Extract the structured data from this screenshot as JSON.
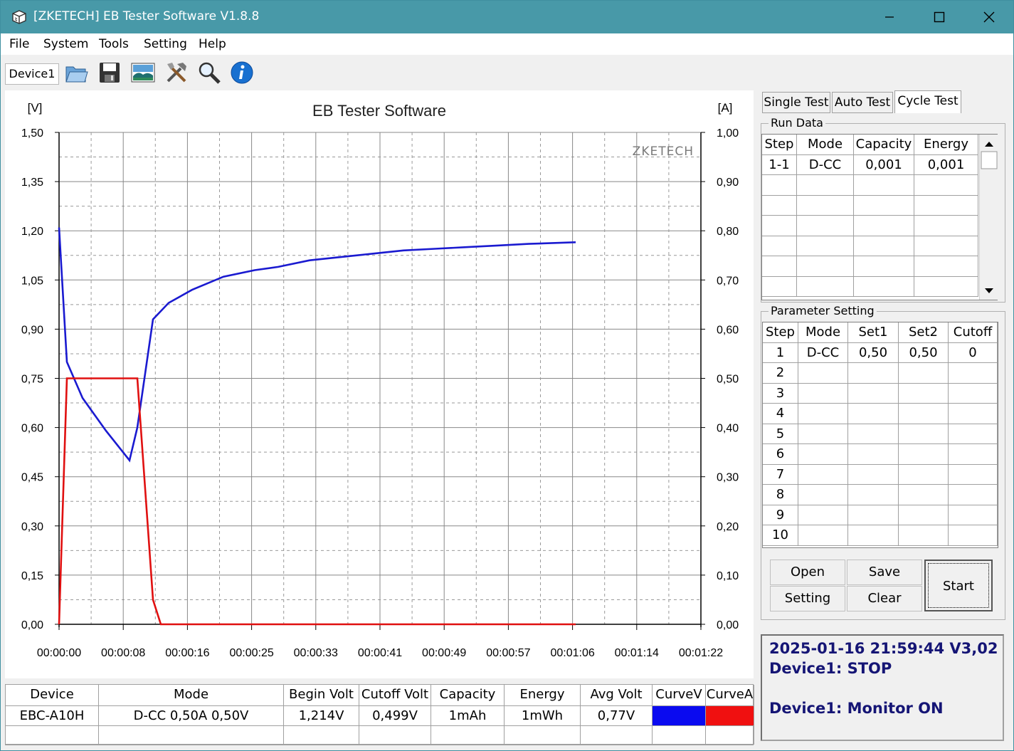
{
  "window": {
    "title": "[ZKETECH] EB Tester Software V1.8.8"
  },
  "menu": [
    "File",
    "System",
    "Tools",
    "Setting",
    "Help"
  ],
  "toolbar": {
    "device_tab": "Device1",
    "icons": [
      "open-folder-icon",
      "save-icon",
      "picture-icon",
      "tools-icon",
      "search-icon",
      "info-icon"
    ]
  },
  "chart": {
    "title": "EB Tester Software",
    "watermark": "ZKETECH",
    "left_unit": "[V]",
    "right_unit": "[A]"
  },
  "chart_data": {
    "type": "line",
    "title": "EB Tester Software",
    "ylabel": "[V]",
    "y2label": "[A]",
    "ylim": [
      0,
      1.5
    ],
    "y2lim": [
      0,
      1.0
    ],
    "y_ticks": [
      "1,50",
      "1,35",
      "1,20",
      "1,05",
      "0,90",
      "0,75",
      "0,60",
      "0,45",
      "0,30",
      "0,15",
      "0,00"
    ],
    "y2_ticks": [
      "1,00",
      "0,90",
      "0,80",
      "0,70",
      "0,60",
      "0,50",
      "0,40",
      "0,30",
      "0,20",
      "0,10",
      "0,00"
    ],
    "x_ticks": [
      "00:00:00",
      "00:00:08",
      "00:00:16",
      "00:00:25",
      "00:00:33",
      "00:00:41",
      "00:00:49",
      "00:00:57",
      "00:01:06",
      "00:01:14",
      "00:01:22"
    ],
    "xlim_seconds": [
      0,
      82
    ],
    "grid": true,
    "series": [
      {
        "name": "CurveV",
        "axis": "left",
        "color": "#1a1ad0",
        "x": [
          0,
          1,
          3,
          6,
          9,
          10,
          12,
          14,
          17,
          21,
          25,
          28,
          32,
          36,
          40,
          44,
          48,
          52,
          56,
          60,
          66
        ],
        "y": [
          1.21,
          0.8,
          0.69,
          0.59,
          0.5,
          0.6,
          0.93,
          0.98,
          1.02,
          1.06,
          1.08,
          1.09,
          1.11,
          1.12,
          1.13,
          1.14,
          1.145,
          1.15,
          1.155,
          1.16,
          1.165
        ]
      },
      {
        "name": "CurveA",
        "axis": "right",
        "color": "#e01010",
        "x": [
          0,
          0.2,
          1,
          10,
          12,
          13,
          66
        ],
        "y": [
          0,
          0.1,
          0.5,
          0.5,
          0.05,
          0.0,
          0.0
        ]
      }
    ]
  },
  "bottom_table": {
    "headers": [
      "Device",
      "Mode",
      "Begin Volt",
      "Cutoff Volt",
      "Capacity",
      "Energy",
      "Avg Volt",
      "CurveV",
      "CurveA"
    ],
    "row": [
      "EBC-A10H",
      "D-CC  0,50A  0,50V",
      "1,214V",
      "0,499V",
      "1mAh",
      "1mWh",
      "0,77V"
    ],
    "curve_colors": [
      "#0a0af0",
      "#f01010"
    ]
  },
  "right": {
    "tabs": [
      "Single Test",
      "Auto Test",
      "Cycle Test"
    ],
    "run_data": {
      "label": "Run Data",
      "headers": [
        "Step",
        "Mode",
        "Capacity",
        "Energy"
      ],
      "rows": [
        [
          "1-1",
          "D-CC",
          "0,001",
          "0,001"
        ]
      ]
    },
    "param": {
      "label": "Parameter Setting",
      "headers": [
        "Step",
        "Mode",
        "Set1",
        "Set2",
        "Cutoff"
      ],
      "rows": [
        [
          "1",
          "D-CC",
          "0,50",
          "0,50",
          "0"
        ],
        [
          "2",
          "",
          "",
          "",
          ""
        ],
        [
          "3",
          "",
          "",
          "",
          ""
        ],
        [
          "4",
          "",
          "",
          "",
          ""
        ],
        [
          "5",
          "",
          "",
          "",
          ""
        ],
        [
          "6",
          "",
          "",
          "",
          ""
        ],
        [
          "7",
          "",
          "",
          "",
          ""
        ],
        [
          "8",
          "",
          "",
          "",
          ""
        ],
        [
          "9",
          "",
          "",
          "",
          ""
        ],
        [
          "10",
          "",
          "",
          "",
          ""
        ]
      ]
    },
    "buttons": {
      "open": "Open",
      "save": "Save",
      "setting": "Setting",
      "clear": "Clear",
      "start": "Start"
    },
    "status": {
      "line1": "2025-01-16 21:59:44  V3,02",
      "line2": "Device1: STOP",
      "line3": "Device1: Monitor ON"
    }
  }
}
